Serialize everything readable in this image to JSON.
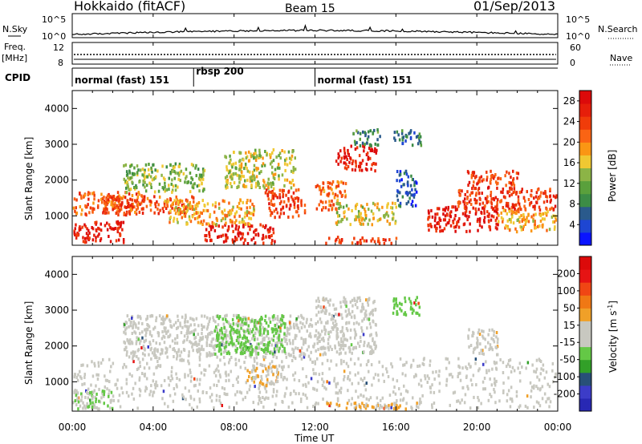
{
  "header": {
    "station": "Hokkaido (fitACF)",
    "beam": "Beam 15",
    "date": "01/Sep/2013"
  },
  "colors": {
    "power_scale": [
      "#0a14ff",
      "#1e46d2",
      "#2a5a8c",
      "#3c8c46",
      "#5aa03c",
      "#8cb446",
      "#f0c832",
      "#fa9614",
      "#fa6414",
      "#f03c0a",
      "#e61e0a",
      "#dc0a0a"
    ],
    "velocity_scale": [
      "#2828b4",
      "#3c3cc8",
      "#285078",
      "#32a028",
      "#64c846",
      "#c8c8c0",
      "#c8c8c0",
      "#f0a028",
      "#f07814",
      "#f04614",
      "#e61414",
      "#dc0a0a"
    ]
  },
  "chart_data": [
    {
      "type": "line",
      "panel": "nsky_nsearch",
      "left_label": "N.Sky",
      "right_label": "N.Search",
      "left_ticks": [
        "10^5",
        "10^0"
      ],
      "right_ticks": [
        "10^5",
        "10^0"
      ],
      "xlim": [
        "00:00",
        "24:00"
      ]
    },
    {
      "type": "line",
      "panel": "freq_nave",
      "left_label": "Freq. [MHz]",
      "right_label": "Nave",
      "left_ticks": [
        "12",
        "8"
      ],
      "right_ticks": [
        "60",
        "0"
      ],
      "xlim": [
        "00:00",
        "24:00"
      ]
    },
    {
      "type": "table",
      "panel": "cpid",
      "label": "CPID",
      "segments": [
        {
          "name": "normal (fast) 151",
          "start": "00:00",
          "end": "06:00"
        },
        {
          "name": "rbsp 200",
          "start": "06:00",
          "end": "12:00"
        },
        {
          "name": "normal (fast) 151",
          "start": "12:00",
          "end": "24:00"
        }
      ]
    },
    {
      "type": "heatmap",
      "panel": "power",
      "ylabel": "Slant Range [km]",
      "yticks": [
        1000,
        2000,
        3000,
        4000
      ],
      "ylim": [
        180,
        4500
      ],
      "xlim": [
        "00:00",
        "24:00"
      ],
      "colorbar_label": "Power [dB]",
      "colorbar_ticks": [
        4,
        8,
        12,
        16,
        20,
        24,
        28
      ],
      "colorbar_range": [
        0,
        30
      ],
      "regions": [
        {
          "t0": 0.0,
          "t1": 3.5,
          "r0": 1050,
          "r1": 1700,
          "v": 22
        },
        {
          "t0": 0.0,
          "t1": 2.5,
          "r0": 300,
          "r1": 900,
          "v": 27
        },
        {
          "t0": 1.5,
          "t1": 6.0,
          "r0": 1100,
          "r1": 1600,
          "v": 23
        },
        {
          "t0": 2.5,
          "t1": 6.5,
          "r0": 1700,
          "r1": 2500,
          "v": 13
        },
        {
          "t0": 6.5,
          "t1": 10.0,
          "r0": 250,
          "r1": 800,
          "v": 27
        },
        {
          "t0": 4.5,
          "t1": 9.0,
          "r0": 800,
          "r1": 1500,
          "v": 18
        },
        {
          "t0": 7.5,
          "t1": 11.0,
          "r0": 1800,
          "r1": 2900,
          "v": 15
        },
        {
          "t0": 9.5,
          "t1": 11.5,
          "r0": 1000,
          "r1": 1800,
          "v": 24
        },
        {
          "t0": 12.0,
          "t1": 13.5,
          "r0": 1200,
          "r1": 2000,
          "v": 21
        },
        {
          "t0": 13.0,
          "t1": 15.0,
          "r0": 2300,
          "r1": 3000,
          "v": 27
        },
        {
          "t0": 13.8,
          "t1": 15.2,
          "r0": 3000,
          "r1": 3450,
          "v": 9
        },
        {
          "t0": 15.8,
          "t1": 17.2,
          "r0": 3000,
          "r1": 3450,
          "v": 7
        },
        {
          "t0": 16.0,
          "t1": 17.0,
          "r0": 1300,
          "r1": 2300,
          "v": 5
        },
        {
          "t0": 13.0,
          "t1": 16.0,
          "r0": 800,
          "r1": 1400,
          "v": 16
        },
        {
          "t0": 17.5,
          "t1": 21.0,
          "r0": 600,
          "r1": 1300,
          "v": 27
        },
        {
          "t0": 19.0,
          "t1": 24.0,
          "r0": 1200,
          "r1": 1800,
          "v": 24
        },
        {
          "t0": 19.5,
          "t1": 22.0,
          "r0": 1800,
          "r1": 2300,
          "v": 24
        },
        {
          "t0": 21.0,
          "t1": 24.0,
          "r0": 600,
          "r1": 1200,
          "v": 18
        },
        {
          "t0": 12.5,
          "t1": 16.0,
          "r0": 250,
          "r1": 450,
          "v": 25
        }
      ]
    },
    {
      "type": "heatmap",
      "panel": "velocity",
      "ylabel": "Slant Range [km]",
      "yticks": [
        1000,
        2000,
        3000,
        4000
      ],
      "ylim": [
        180,
        4500
      ],
      "xlim": [
        "00:00",
        "24:00"
      ],
      "xticks": [
        "00:00",
        "04:00",
        "08:00",
        "12:00",
        "16:00",
        "20:00",
        "00:00"
      ],
      "xlabel": "Time UT",
      "colorbar_label": "Velocity [m s^-1]",
      "colorbar_ticks": [
        "200",
        "100",
        "50",
        "15",
        "-15",
        "-50",
        "-100",
        "-200"
      ],
      "colorbar_range": [
        -250,
        250
      ],
      "regions": [
        {
          "t0": 0.0,
          "t1": 24.0,
          "r0": 300,
          "r1": 1700,
          "v": 0
        },
        {
          "t0": 2.5,
          "t1": 12.0,
          "r0": 1700,
          "r1": 2900,
          "v": 0
        },
        {
          "t0": 12.0,
          "t1": 15.0,
          "r0": 1800,
          "r1": 3400,
          "v": 0
        },
        {
          "t0": 15.8,
          "t1": 17.2,
          "r0": 2900,
          "r1": 3400,
          "v": -60
        },
        {
          "t0": 7.0,
          "t1": 10.5,
          "r0": 1800,
          "r1": 2900,
          "v": -60
        },
        {
          "t0": 8.5,
          "t1": 10.5,
          "r0": 900,
          "r1": 1500,
          "v": 40
        },
        {
          "t0": 12.5,
          "t1": 17.0,
          "r0": 250,
          "r1": 450,
          "v": 45
        },
        {
          "t0": 19.5,
          "t1": 21.0,
          "r0": 1800,
          "r1": 2500,
          "v": 30
        },
        {
          "t0": 0.0,
          "t1": 2.0,
          "r0": 250,
          "r1": 800,
          "v": -40
        }
      ]
    }
  ],
  "time_axis": {
    "label": "Time UT",
    "ticks": [
      "00:00",
      "04:00",
      "08:00",
      "12:00",
      "16:00",
      "20:00",
      "00:00"
    ]
  },
  "labels": {
    "n_sky": "N.Sky",
    "n_search": "N.Search",
    "freq": "Freq.",
    "freq_unit": "[MHz]",
    "nave": "Nave",
    "cpid": "CPID",
    "tick_1e5": "10^5",
    "tick_1e0": "10^0",
    "freq_12": "12",
    "freq_8": "8",
    "nave_60": "60",
    "nave_0": "0",
    "slant_range": "Slant Range [km]",
    "power_label": "Power [dB]",
    "velocity_label": "Velocity [m s",
    "velocity_sup": "-1",
    "velocity_close": "]"
  }
}
